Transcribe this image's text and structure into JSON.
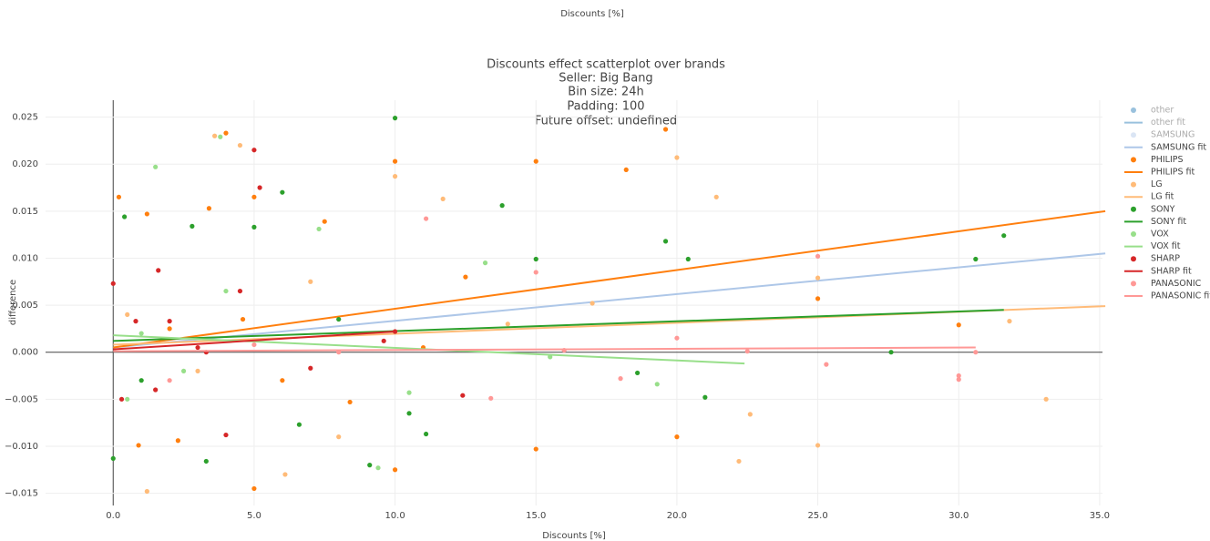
{
  "chart_data": {
    "type": "scatter",
    "top_label": "Discounts [%]",
    "title": [
      "Discounts effect scatterplot over brands",
      "Seller: Big Bang",
      "Bin size: 24h",
      "Padding: 100",
      "Future offset: undefined"
    ],
    "x_label": "Discounts [%]",
    "y_label": "difference",
    "xlim": [
      -2.4,
      35.1
    ],
    "ylim": [
      -0.0163,
      0.0268
    ],
    "xticks": [
      {
        "value": 0,
        "label": "0.0"
      },
      {
        "value": 5,
        "label": "5.0"
      },
      {
        "value": 10,
        "label": "10.0"
      },
      {
        "value": 15,
        "label": "15.0"
      },
      {
        "value": 20,
        "label": "20.0"
      },
      {
        "value": 25,
        "label": "25.0"
      },
      {
        "value": 30,
        "label": "30.0"
      },
      {
        "value": 35,
        "label": "35.0"
      }
    ],
    "yticks": [
      {
        "value": -0.015,
        "label": "−0.015"
      },
      {
        "value": -0.01,
        "label": "−0.010"
      },
      {
        "value": -0.005,
        "label": "−0.005"
      },
      {
        "value": 0,
        "label": "0.000"
      },
      {
        "value": 0.005,
        "label": "0.005"
      },
      {
        "value": 0.01,
        "label": "0.010"
      },
      0.015,
      {
        "value": 0.02,
        "label": "0.020"
      },
      0.025
    ],
    "grid": true,
    "legend_position": "right",
    "series": [
      {
        "name": "other",
        "color": "#1f77b4",
        "mode": "markers",
        "visible": "legendonly"
      },
      {
        "name": "other fit",
        "color": "#1f77b4",
        "mode": "lines",
        "visible": "legendonly"
      },
      {
        "name": "SAMSUNG",
        "color": "#aec7e8",
        "mode": "markers",
        "visible": "legendonly"
      },
      {
        "name": "SAMSUNG fit",
        "color": "#aec7e8",
        "mode": "lines",
        "visible": true,
        "x": [
          0,
          35.2
        ],
        "y": [
          0.0005,
          0.0105
        ]
      },
      {
        "name": "PHILIPS",
        "color": "#ff7f0e",
        "mode": "markers",
        "visible": true,
        "x": [
          0.2,
          0.9,
          1.2,
          2.3,
          3.4,
          4.0,
          5.0,
          5.0,
          7.5,
          8.4,
          10,
          10,
          12.5,
          15,
          15,
          18.2,
          19.6,
          20,
          25,
          30,
          4.6,
          2,
          6,
          11
        ],
        "y": [
          0.0165,
          -0.0099,
          0.0147,
          -0.0094,
          0.0153,
          0.0233,
          -0.0145,
          0.0165,
          0.0139,
          -0.0053,
          0.0203,
          -0.0125,
          0.008,
          0.0203,
          -0.0103,
          0.0194,
          0.0237,
          -0.009,
          0.0057,
          0.0029,
          0.0035,
          0.0025,
          -0.003,
          0.0005
        ]
      },
      {
        "name": "PHILIPS fit",
        "color": "#ff7f0e",
        "mode": "lines",
        "visible": true,
        "x": [
          0,
          35.2
        ],
        "y": [
          0.0005,
          0.015
        ]
      },
      {
        "name": "LG",
        "color": "#ffbb78",
        "mode": "markers",
        "visible": true,
        "x": [
          1.2,
          3.6,
          4.5,
          6.1,
          8,
          10,
          11.7,
          17,
          20,
          21.4,
          22.2,
          22.6,
          25,
          25,
          31.8,
          33.1,
          0.5,
          3,
          7,
          14
        ],
        "y": [
          -0.0148,
          0.023,
          0.022,
          -0.013,
          -0.009,
          0.0187,
          0.0163,
          0.0052,
          0.0207,
          0.0165,
          -0.0116,
          -0.0066,
          -0.0099,
          0.0079,
          0.0033,
          -0.005,
          0.004,
          -0.002,
          0.0075,
          0.003
        ]
      },
      {
        "name": "LG fit",
        "color": "#ffbb78",
        "mode": "lines",
        "visible": true,
        "x": [
          0,
          35.2
        ],
        "y": [
          0.0008,
          0.0049
        ]
      },
      {
        "name": "SONY",
        "color": "#2ca02c",
        "mode": "markers",
        "visible": true,
        "x": [
          0,
          0.4,
          2.8,
          3.3,
          6.0,
          6.6,
          9.1,
          10,
          10.5,
          11.1,
          13.8,
          15,
          18.6,
          19.6,
          20.4,
          21,
          27.6,
          30.6,
          31.6,
          5,
          1,
          8
        ],
        "y": [
          -0.0113,
          0.0144,
          0.0134,
          -0.0116,
          0.017,
          -0.0077,
          -0.012,
          0.0249,
          -0.0065,
          -0.0087,
          0.0156,
          0.0099,
          -0.0022,
          0.0118,
          0.0099,
          -0.0048,
          0,
          0.0099,
          0.0124,
          0.0133,
          -0.003,
          0.0035
        ]
      },
      {
        "name": "SONY fit",
        "color": "#2ca02c",
        "mode": "lines",
        "visible": true,
        "x": [
          0,
          31.6
        ],
        "y": [
          0.0012,
          0.0045
        ]
      },
      {
        "name": "VOX",
        "color": "#98df8a",
        "mode": "markers",
        "visible": true,
        "x": [
          0.5,
          1.5,
          3.8,
          7.3,
          9.4,
          10.5,
          13.2,
          19.3,
          1,
          2.5,
          4,
          15.5
        ],
        "y": [
          -0.005,
          0.0197,
          0.0229,
          0.0131,
          -0.0123,
          -0.0043,
          0.0095,
          -0.0034,
          0.002,
          -0.002,
          0.0065,
          -0.0005
        ]
      },
      {
        "name": "VOX fit",
        "color": "#98df8a",
        "mode": "lines",
        "visible": true,
        "x": [
          0,
          22.4
        ],
        "y": [
          0.0018,
          -0.0012
        ]
      },
      {
        "name": "SHARP",
        "color": "#d62728",
        "mode": "markers",
        "visible": true,
        "x": [
          0,
          0.3,
          1.6,
          3.3,
          4,
          5,
          5.2,
          9.6,
          12.4,
          2,
          0.8,
          4.5,
          7,
          10,
          1.5,
          3
        ],
        "y": [
          0.0073,
          -0.005,
          0.0087,
          0,
          -0.0088,
          0.0215,
          0.0175,
          0.0012,
          -0.0046,
          0.0033,
          0.0033,
          0.0065,
          -0.0017,
          0.0022,
          -0.004,
          0.0005
        ]
      },
      {
        "name": "SHARP fit",
        "color": "#d62728",
        "mode": "lines",
        "visible": true,
        "x": [
          0,
          10
        ],
        "y": [
          0.0003,
          0.0022
        ]
      },
      {
        "name": "PANASONIC",
        "color": "#ff9896",
        "mode": "markers",
        "visible": true,
        "x": [
          11.1,
          13.4,
          15,
          18,
          22.5,
          25,
          25.3,
          30,
          30,
          30.6,
          5,
          8,
          2,
          16,
          20
        ],
        "y": [
          0.0142,
          -0.0049,
          0.0085,
          -0.0028,
          0.0001,
          0.0102,
          -0.0013,
          -0.0025,
          -0.0029,
          0,
          0.0008,
          0,
          -0.003,
          0.0002,
          0.0015
        ]
      },
      {
        "name": "PANASONIC fit",
        "color": "#ff9896",
        "mode": "lines",
        "visible": true,
        "x": [
          0,
          30.6
        ],
        "y": [
          0.0001,
          0.0005
        ]
      }
    ]
  }
}
